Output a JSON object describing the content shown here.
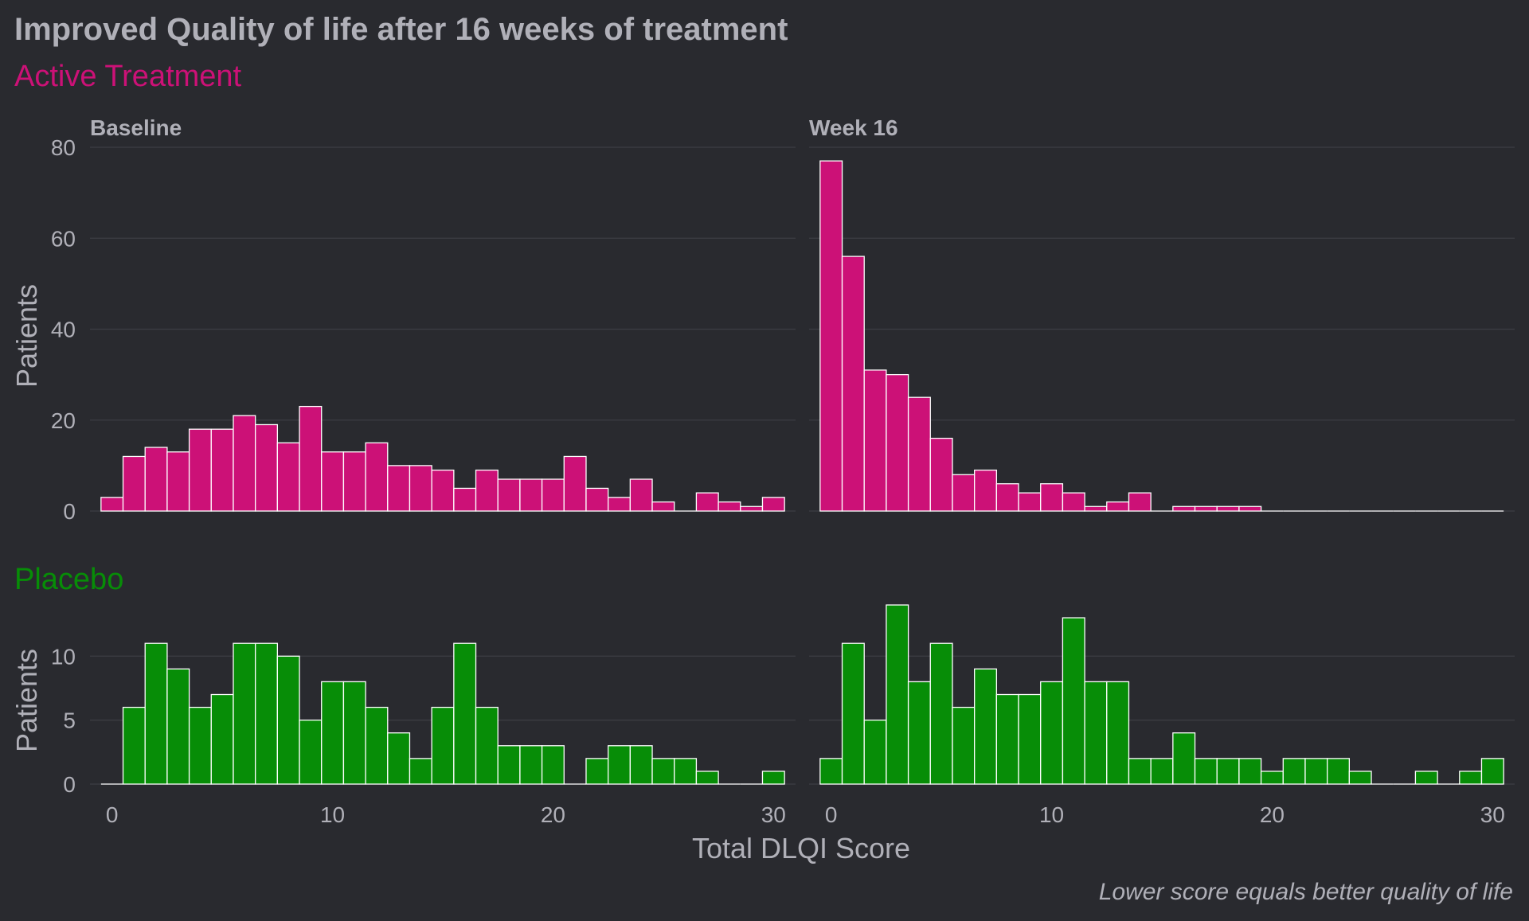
{
  "title": "Improved Quality of life after 16 weeks of treatment",
  "caption": "Lower score equals better quality of life",
  "xlabel": "Total DLQI Score",
  "colors": {
    "background": "#292a2f",
    "text": "#b0b0b8",
    "grid": "#3d3e44",
    "bar_border": "#ffffff",
    "active": "#cc1177",
    "placebo": "#078d07"
  },
  "chart_data": {
    "type": "bar",
    "x_categories": [
      0,
      1,
      2,
      3,
      4,
      5,
      6,
      7,
      8,
      9,
      10,
      11,
      12,
      13,
      14,
      15,
      16,
      17,
      18,
      19,
      20,
      21,
      22,
      23,
      24,
      25,
      26,
      27,
      28,
      29,
      30
    ],
    "xlim": [
      -1,
      31
    ],
    "x_ticks": [
      0,
      10,
      20,
      30
    ],
    "facet_columns": [
      "Baseline",
      "Week 16"
    ],
    "groups": [
      {
        "label": "Active Treatment",
        "color": "#cc1177",
        "ylabel": "Patients",
        "ylim": [
          0,
          80
        ],
        "y_ticks": [
          0,
          20,
          40,
          60,
          80
        ],
        "panels": [
          {
            "facet": "Baseline",
            "values": [
              3,
              12,
              14,
              13,
              18,
              18,
              21,
              19,
              15,
              23,
              13,
              13,
              15,
              10,
              10,
              9,
              5,
              9,
              7,
              7,
              7,
              12,
              5,
              3,
              7,
              2,
              0,
              4,
              2,
              1,
              3
            ]
          },
          {
            "facet": "Week 16",
            "values": [
              77,
              56,
              31,
              30,
              25,
              16,
              8,
              9,
              6,
              4,
              6,
              4,
              1,
              2,
              4,
              0,
              1,
              1,
              1,
              1,
              0,
              0,
              0,
              0,
              0,
              0,
              0,
              0,
              0,
              0,
              0
            ]
          }
        ]
      },
      {
        "label": "Placebo",
        "color": "#078d07",
        "ylabel": "Patients",
        "ylim": [
          0,
          14
        ],
        "y_ticks": [
          0,
          5,
          10
        ],
        "panels": [
          {
            "facet": "Baseline",
            "values": [
              0,
              6,
              11,
              9,
              6,
              7,
              11,
              11,
              10,
              5,
              8,
              8,
              6,
              4,
              2,
              6,
              11,
              6,
              3,
              3,
              3,
              0,
              2,
              3,
              3,
              2,
              2,
              1,
              0,
              0,
              1
            ]
          },
          {
            "facet": "Week 16",
            "values": [
              2,
              11,
              5,
              14,
              8,
              11,
              6,
              9,
              7,
              7,
              8,
              13,
              8,
              8,
              2,
              2,
              4,
              2,
              2,
              2,
              1,
              2,
              2,
              2,
              1,
              0,
              0,
              1,
              0,
              1,
              2
            ]
          }
        ]
      }
    ]
  }
}
